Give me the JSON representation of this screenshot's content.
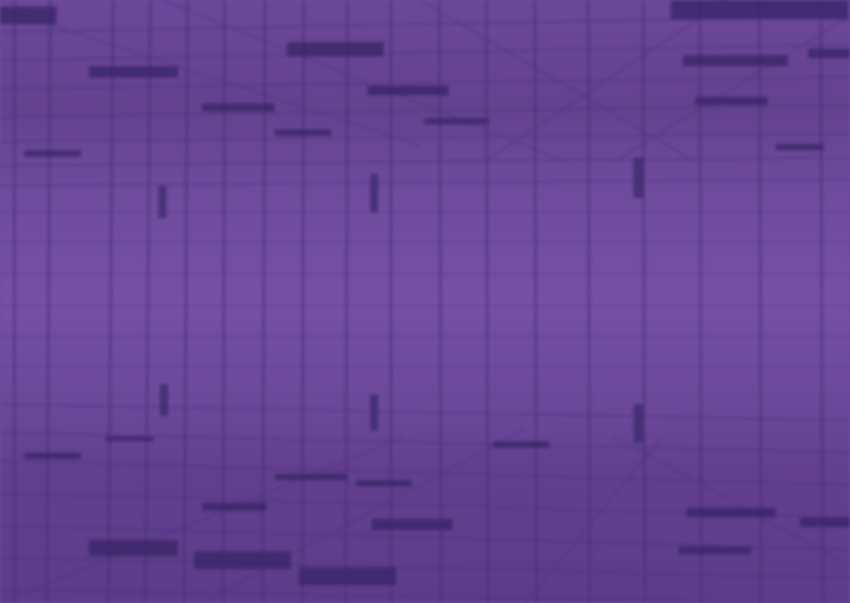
{
  "scene": {
    "description_visible_text": "",
    "colors": {
      "base": "#6f4a9e",
      "mid_band": "#7650a6",
      "dark_bands": "#5a3a86",
      "lines": "#4a2e78",
      "dark_blocks": "#3d2a6e"
    }
  }
}
